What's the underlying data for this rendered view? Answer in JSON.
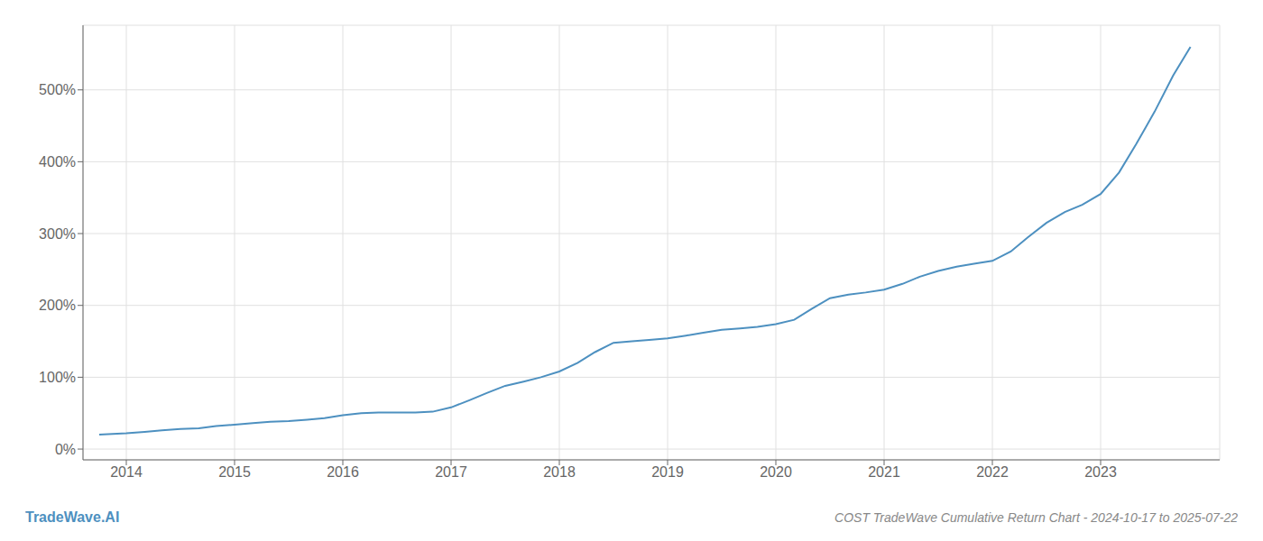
{
  "chart_data": {
    "type": "line",
    "title": "COST TradeWave Cumulative Return Chart - 2024-10-17 to 2025-07-22",
    "annotations": [
      "TradeWave.AI"
    ],
    "x": [
      2013.75,
      2014.0,
      2014.17,
      2014.33,
      2014.5,
      2014.67,
      2014.83,
      2015.0,
      2015.17,
      2015.33,
      2015.5,
      2015.67,
      2015.83,
      2016.0,
      2016.17,
      2016.33,
      2016.5,
      2016.67,
      2016.83,
      2017.0,
      2017.17,
      2017.33,
      2017.5,
      2017.67,
      2017.83,
      2018.0,
      2018.17,
      2018.33,
      2018.5,
      2018.67,
      2018.83,
      2019.0,
      2019.17,
      2019.33,
      2019.5,
      2019.67,
      2019.83,
      2020.0,
      2020.17,
      2020.33,
      2020.5,
      2020.67,
      2020.83,
      2021.0,
      2021.17,
      2021.33,
      2021.5,
      2021.67,
      2021.83,
      2022.0,
      2022.17,
      2022.33,
      2022.5,
      2022.67,
      2022.83,
      2023.0,
      2023.17,
      2023.33,
      2023.5,
      2023.67,
      2023.83
    ],
    "values": [
      20,
      22,
      24,
      26,
      28,
      29,
      32,
      34,
      36,
      38,
      39,
      41,
      43,
      47,
      50,
      51,
      51,
      51,
      52,
      58,
      68,
      78,
      88,
      94,
      100,
      108,
      120,
      135,
      148,
      150,
      152,
      154,
      158,
      162,
      166,
      168,
      170,
      174,
      180,
      195,
      210,
      215,
      218,
      222,
      230,
      240,
      248,
      254,
      258,
      262,
      275,
      295,
      315,
      330,
      340,
      355,
      385,
      425,
      470,
      520,
      560
    ],
    "color": "#4d90c0",
    "xlim": [
      2013.6,
      2024.1
    ],
    "xticks": [
      2014,
      2015,
      2016,
      2017,
      2018,
      2019,
      2020,
      2021,
      2022,
      2023
    ],
    "ylim": [
      -15,
      590
    ],
    "yticks": [
      {
        "value": 0,
        "label": "0%"
      },
      {
        "value": 100,
        "label": "100%"
      },
      {
        "value": 200,
        "label": "200%"
      },
      {
        "value": 300,
        "label": "300%"
      },
      {
        "value": 400,
        "label": "400%"
      },
      {
        "value": 500,
        "label": "500%"
      }
    ],
    "grid": true
  }
}
